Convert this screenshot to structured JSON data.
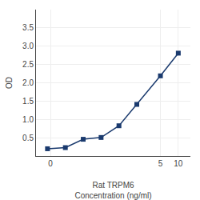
{
  "chart_data": {
    "type": "line",
    "x": [
      0.0625,
      0.125,
      0.25,
      0.5,
      1,
      2,
      5,
      10
    ],
    "values": [
      0.198,
      0.229,
      0.457,
      0.506,
      0.826,
      1.41,
      2.19,
      2.81
    ],
    "color": "#1a3a6e",
    "marker": "square",
    "xlabel": "Rat TRPM6\nConcentration (ng/ml)",
    "ylabel": "OD",
    "log": "x",
    "xlim": [
      0.04,
      16
    ],
    "ylim": [
      0,
      4.0
    ],
    "xticks": [
      {
        "value": 0.07,
        "label": "0"
      },
      5,
      10
    ],
    "yticks": [
      0.5,
      {
        "value": 1.0,
        "label": "1.0"
      },
      1.5,
      {
        "value": 2.0,
        "label": "2.0"
      },
      2.5,
      {
        "value": 3.0,
        "label": "3.0"
      },
      3.5
    ],
    "grid": true
  }
}
